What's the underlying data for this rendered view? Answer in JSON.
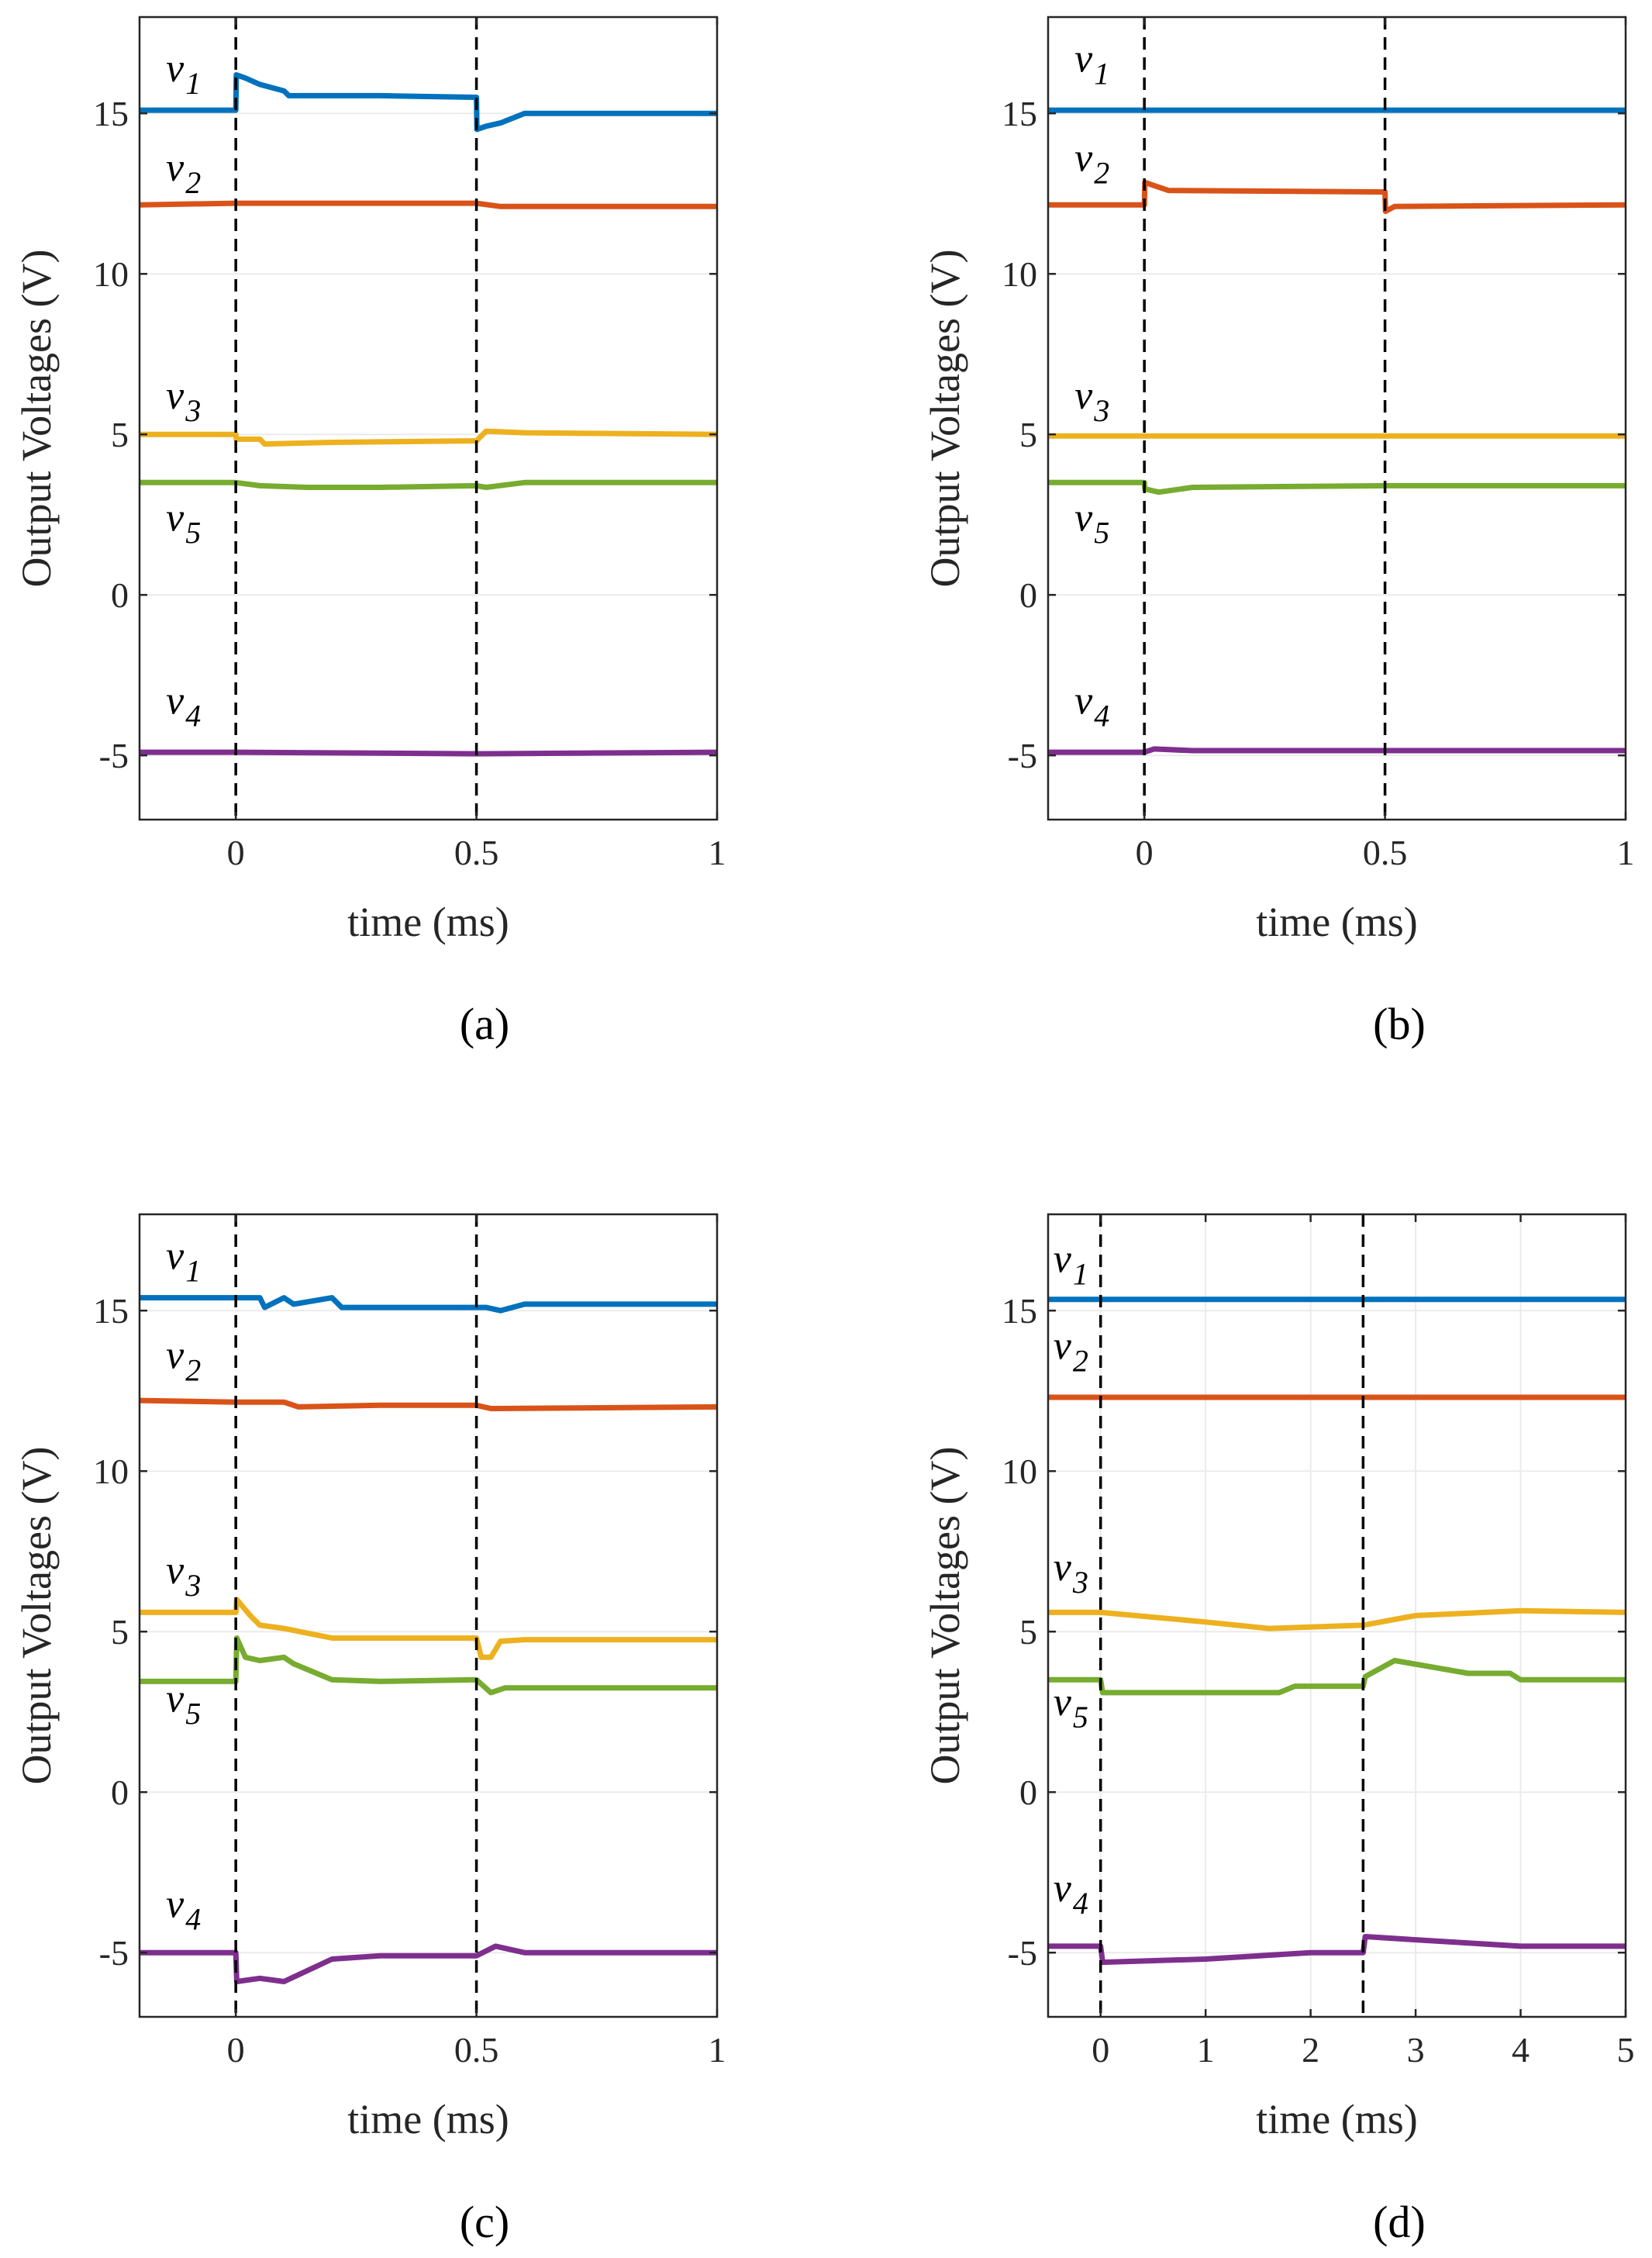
{
  "colors": {
    "v1": "#0072BD",
    "v2": "#D95319",
    "v3": "#EDB120",
    "v4": "#7E2F8E",
    "v5": "#77AC30",
    "axis": "#262626",
    "grid": "#ebebeb",
    "event_line": "#000000"
  },
  "chart_data": [
    {
      "type": "line",
      "caption": "(a)",
      "xlabel": "time (ms)",
      "ylabel": "Output Voltages (V)",
      "xlim": [
        -0.2,
        1
      ],
      "ylim": [
        -7,
        18
      ],
      "xticks": [
        0,
        0.5,
        1
      ],
      "xtick_labels": [
        "0",
        "0.5",
        "1"
      ],
      "yticks": [
        -5,
        0,
        5,
        10,
        15
      ],
      "ytick_labels": [
        "-5",
        "0",
        "5",
        "10",
        "15"
      ],
      "grid": "y",
      "event_lines_x": [
        0,
        0.5
      ],
      "annotations": [
        {
          "base": "v",
          "sub": "1",
          "x": -0.145,
          "y": 16.0
        },
        {
          "base": "v",
          "sub": "2",
          "x": -0.145,
          "y": 12.9
        },
        {
          "base": "v",
          "sub": "3",
          "x": -0.145,
          "y": 5.8
        },
        {
          "base": "v",
          "sub": "5",
          "x": -0.145,
          "y": 2.0
        },
        {
          "base": "v",
          "sub": "4",
          "x": -0.145,
          "y": -3.7
        }
      ],
      "series": [
        {
          "key": "v1",
          "x": [
            -0.2,
            0,
            0.001,
            0.02,
            0.05,
            0.1,
            0.11,
            0.2,
            0.3,
            0.5,
            0.501,
            0.52,
            0.55,
            0.6,
            1
          ],
          "y": [
            15.1,
            15.1,
            16.2,
            16.1,
            15.9,
            15.7,
            15.55,
            15.55,
            15.55,
            15.5,
            14.5,
            14.6,
            14.7,
            15.0,
            15.0
          ]
        },
        {
          "key": "v2",
          "x": [
            -0.2,
            0,
            0.5,
            0.55,
            1
          ],
          "y": [
            12.15,
            12.2,
            12.2,
            12.1,
            12.1
          ]
        },
        {
          "key": "v3",
          "x": [
            -0.2,
            0,
            0.001,
            0.05,
            0.06,
            0.2,
            0.5,
            0.52,
            0.6,
            1
          ],
          "y": [
            5.0,
            5.0,
            4.85,
            4.85,
            4.7,
            4.75,
            4.8,
            5.1,
            5.05,
            5.0
          ]
        },
        {
          "key": "v5",
          "x": [
            -0.2,
            0,
            0.05,
            0.15,
            0.3,
            0.5,
            0.52,
            0.6,
            1
          ],
          "y": [
            3.5,
            3.5,
            3.4,
            3.35,
            3.35,
            3.4,
            3.35,
            3.5,
            3.5
          ]
        },
        {
          "key": "v4",
          "x": [
            -0.2,
            0,
            0.5,
            1
          ],
          "y": [
            -4.9,
            -4.9,
            -4.95,
            -4.9
          ]
        }
      ]
    },
    {
      "type": "line",
      "caption": "(b)",
      "xlabel": "time (ms)",
      "ylabel": "Output Voltages (V)",
      "xlim": [
        -0.2,
        1
      ],
      "ylim": [
        -7,
        18
      ],
      "xticks": [
        0,
        0.5,
        1
      ],
      "xtick_labels": [
        "0",
        "0.5",
        "1"
      ],
      "yticks": [
        -5,
        0,
        5,
        10,
        15
      ],
      "ytick_labels": [
        "-5",
        "0",
        "5",
        "10",
        "15"
      ],
      "grid": "y",
      "event_lines_x": [
        0,
        0.5
      ],
      "annotations": [
        {
          "base": "v",
          "sub": "1",
          "x": -0.145,
          "y": 16.3
        },
        {
          "base": "v",
          "sub": "2",
          "x": -0.145,
          "y": 13.2
        },
        {
          "base": "v",
          "sub": "3",
          "x": -0.145,
          "y": 5.8
        },
        {
          "base": "v",
          "sub": "5",
          "x": -0.145,
          "y": 2.0
        },
        {
          "base": "v",
          "sub": "4",
          "x": -0.145,
          "y": -3.7
        }
      ],
      "series": [
        {
          "key": "v1",
          "x": [
            -0.2,
            1
          ],
          "y": [
            15.1,
            15.1
          ]
        },
        {
          "key": "v2",
          "x": [
            -0.2,
            0,
            0.001,
            0.02,
            0.05,
            0.5,
            0.501,
            0.52,
            1
          ],
          "y": [
            12.15,
            12.15,
            12.85,
            12.75,
            12.6,
            12.55,
            11.95,
            12.1,
            12.15
          ]
        },
        {
          "key": "v3",
          "x": [
            -0.2,
            1
          ],
          "y": [
            4.95,
            4.95
          ]
        },
        {
          "key": "v5",
          "x": [
            -0.2,
            0,
            0.001,
            0.03,
            0.1,
            0.5,
            1
          ],
          "y": [
            3.5,
            3.5,
            3.3,
            3.2,
            3.35,
            3.4,
            3.4
          ]
        },
        {
          "key": "v4",
          "x": [
            -0.2,
            0,
            0.02,
            0.1,
            1
          ],
          "y": [
            -4.9,
            -4.9,
            -4.8,
            -4.85,
            -4.85
          ]
        }
      ]
    },
    {
      "type": "line",
      "caption": "(c)",
      "xlabel": "time (ms)",
      "ylabel": "Output Voltages (V)",
      "xlim": [
        -0.2,
        1
      ],
      "ylim": [
        -7,
        18
      ],
      "xticks": [
        0,
        0.5,
        1
      ],
      "xtick_labels": [
        "0",
        "0.5",
        "1"
      ],
      "yticks": [
        -5,
        0,
        5,
        10,
        15
      ],
      "ytick_labels": [
        "-5",
        "0",
        "5",
        "10",
        "15"
      ],
      "grid": "y",
      "event_lines_x": [
        0,
        0.5
      ],
      "annotations": [
        {
          "base": "v",
          "sub": "1",
          "x": -0.145,
          "y": 16.3
        },
        {
          "base": "v",
          "sub": "2",
          "x": -0.145,
          "y": 13.2
        },
        {
          "base": "v",
          "sub": "3",
          "x": -0.145,
          "y": 6.5
        },
        {
          "base": "v",
          "sub": "5",
          "x": -0.145,
          "y": 2.5
        },
        {
          "base": "v",
          "sub": "4",
          "x": -0.145,
          "y": -3.9
        }
      ],
      "series": [
        {
          "key": "v1",
          "x": [
            -0.2,
            0,
            0.05,
            0.06,
            0.1,
            0.12,
            0.2,
            0.22,
            0.3,
            0.5,
            0.52,
            0.55,
            0.6,
            1
          ],
          "y": [
            15.4,
            15.4,
            15.4,
            15.1,
            15.4,
            15.2,
            15.4,
            15.1,
            15.1,
            15.1,
            15.1,
            15.0,
            15.2,
            15.2
          ]
        },
        {
          "key": "v2",
          "x": [
            -0.2,
            0,
            0.1,
            0.13,
            0.3,
            0.5,
            0.53,
            1
          ],
          "y": [
            12.2,
            12.15,
            12.15,
            12.0,
            12.05,
            12.05,
            11.95,
            12.0
          ]
        },
        {
          "key": "v3",
          "x": [
            -0.2,
            0,
            0.002,
            0.03,
            0.05,
            0.1,
            0.2,
            0.5,
            0.51,
            0.53,
            0.55,
            0.6,
            1
          ],
          "y": [
            5.6,
            5.6,
            6.0,
            5.5,
            5.2,
            5.1,
            4.8,
            4.8,
            4.2,
            4.2,
            4.7,
            4.75,
            4.75
          ]
        },
        {
          "key": "v5",
          "x": [
            -0.2,
            0,
            0.002,
            0.02,
            0.05,
            0.1,
            0.12,
            0.2,
            0.3,
            0.5,
            0.53,
            0.56,
            0.6,
            1
          ],
          "y": [
            3.45,
            3.45,
            4.8,
            4.2,
            4.1,
            4.2,
            4.0,
            3.5,
            3.45,
            3.5,
            3.1,
            3.25,
            3.25,
            3.25
          ]
        },
        {
          "key": "v4",
          "x": [
            -0.2,
            0,
            0.002,
            0.05,
            0.1,
            0.2,
            0.3,
            0.5,
            0.54,
            0.6,
            1
          ],
          "y": [
            -5.0,
            -5.0,
            -5.9,
            -5.8,
            -5.9,
            -5.2,
            -5.1,
            -5.1,
            -4.8,
            -5.0,
            -5.0
          ]
        }
      ]
    },
    {
      "type": "line",
      "caption": "(d)",
      "xlabel": "time (ms)",
      "ylabel": "Output Voltages (V)",
      "xlim": [
        -0.5,
        5
      ],
      "ylim": [
        -7,
        18
      ],
      "xticks": [
        0,
        1,
        2,
        3,
        4,
        5
      ],
      "xtick_labels": [
        "0",
        "1",
        "2",
        "3",
        "4",
        "5"
      ],
      "yticks": [
        -5,
        0,
        5,
        10,
        15
      ],
      "ytick_labels": [
        "-5",
        "0",
        "5",
        "10",
        "15"
      ],
      "grid": "xy",
      "event_lines_x": [
        0,
        2.5
      ],
      "annotations": [
        {
          "base": "v",
          "sub": "1",
          "x": -0.45,
          "y": 16.2
        },
        {
          "base": "v",
          "sub": "2",
          "x": -0.45,
          "y": 13.5
        },
        {
          "base": "v",
          "sub": "3",
          "x": -0.45,
          "y": 6.6
        },
        {
          "base": "v",
          "sub": "5",
          "x": -0.45,
          "y": 2.4
        },
        {
          "base": "v",
          "sub": "4",
          "x": -0.45,
          "y": -3.4
        }
      ],
      "series": [
        {
          "key": "v1",
          "x": [
            -0.5,
            5
          ],
          "y": [
            15.35,
            15.35
          ]
        },
        {
          "key": "v2",
          "x": [
            -0.5,
            5
          ],
          "y": [
            12.3,
            12.3
          ]
        },
        {
          "key": "v3",
          "x": [
            -0.5,
            0,
            1,
            1.6,
            2.5,
            3.0,
            4.0,
            5.0
          ],
          "y": [
            5.6,
            5.6,
            5.3,
            5.1,
            5.2,
            5.5,
            5.65,
            5.6
          ]
        },
        {
          "key": "v5",
          "x": [
            -0.5,
            0,
            0.02,
            1.7,
            1.85,
            2.5,
            2.52,
            2.8,
            3.5,
            3.9,
            4.0,
            5.0
          ],
          "y": [
            3.5,
            3.5,
            3.1,
            3.1,
            3.3,
            3.3,
            3.6,
            4.1,
            3.7,
            3.7,
            3.5,
            3.5
          ]
        },
        {
          "key": "v4",
          "x": [
            -0.5,
            0,
            0.02,
            1.0,
            2.0,
            2.5,
            2.52,
            3.0,
            4.0,
            5.0
          ],
          "y": [
            -4.8,
            -4.8,
            -5.3,
            -5.2,
            -5.0,
            -5.0,
            -4.5,
            -4.6,
            -4.8,
            -4.8
          ]
        }
      ]
    }
  ]
}
